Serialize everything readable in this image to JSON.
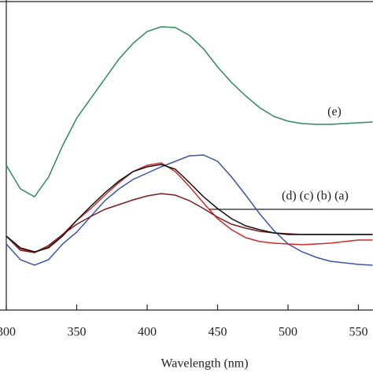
{
  "chart_data": {
    "type": "line",
    "x_label": "Wavelength (nm)",
    "annotations": [
      "(e)",
      "(d) (c) (b) (a)"
    ],
    "x": [
      300,
      310,
      320,
      330,
      340,
      350,
      360,
      370,
      380,
      390,
      400,
      410,
      420,
      430,
      440,
      450,
      460,
      470,
      480,
      490,
      500,
      510,
      520,
      530,
      540,
      550,
      560
    ],
    "xlim": [
      300,
      560
    ],
    "xticks": [
      300,
      350,
      400,
      450,
      500,
      550
    ],
    "ylim": [
      0,
      100
    ],
    "series": [
      {
        "color": "#2e8b57",
        "values": [
          46,
          38.5,
          36,
          42.25,
          52.25,
          61,
          67.25,
          73.5,
          79.75,
          84.75,
          88.5,
          90,
          89.75,
          87.25,
          83,
          77.25,
          72.25,
          68,
          64.25,
          61.5,
          60,
          59.25,
          59,
          59,
          59.25,
          59.5,
          59.75
        ]
      },
      {
        "color": "#3b55a8",
        "values": [
          21,
          16,
          14.25,
          16,
          21,
          24.75,
          29.75,
          34.75,
          38.5,
          41.5,
          43.5,
          45.5,
          47.25,
          49,
          49.25,
          47.25,
          42.25,
          36.5,
          30.5,
          25.25,
          21,
          18.5,
          16.75,
          15.5,
          15,
          14.5,
          14.25
        ]
      },
      {
        "color": "#d62728",
        "values": [
          23.5,
          19.5,
          18.25,
          20,
          24,
          28.5,
          32.25,
          36.5,
          40.5,
          44,
          46,
          46.75,
          44,
          39.25,
          34,
          29,
          25.5,
          23,
          21.75,
          21.25,
          21,
          20.75,
          21,
          21.25,
          21.75,
          22.25,
          22.25
        ]
      },
      {
        "color": "#7b1c1c",
        "values": [
          23.5,
          19,
          18.25,
          20.5,
          24,
          27.25,
          29.75,
          32,
          33.5,
          35,
          36.25,
          37,
          36.5,
          34.75,
          32.25,
          29.5,
          27.25,
          26,
          25,
          24.5,
          24.25,
          24,
          24,
          24,
          24,
          24,
          24
        ]
      },
      {
        "color": "#111111",
        "values": [
          23.5,
          19.75,
          18.5,
          19.75,
          23.5,
          28.5,
          33,
          37.25,
          41,
          44,
          45.5,
          46.25,
          44.75,
          40.5,
          36,
          32.25,
          29,
          26.75,
          25.5,
          24.5,
          24,
          24,
          24,
          24,
          24,
          24,
          24
        ]
      }
    ]
  }
}
